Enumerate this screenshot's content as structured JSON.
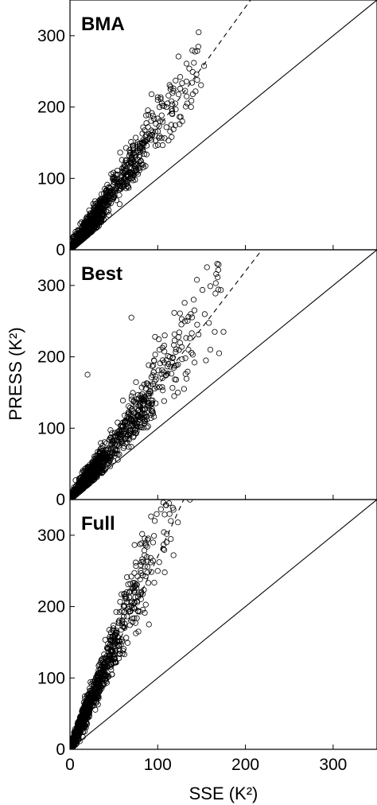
{
  "chart_data": [
    {
      "type": "scatter",
      "panel_label": "BMA",
      "xlim": [
        0,
        350
      ],
      "ylim": [
        0,
        350
      ],
      "xticks": [
        0,
        100,
        200,
        300
      ],
      "yticks": [
        0,
        100,
        200,
        300
      ],
      "identity_line": true,
      "dashed_fit_slope": 1.7,
      "clusters": [
        {
          "x_center": 20,
          "y_center": 30,
          "count": 420
        },
        {
          "x_center": 45,
          "y_center": 75,
          "count": 260
        },
        {
          "x_center": 70,
          "y_center": 120,
          "count": 160
        },
        {
          "x_center": 85,
          "y_center": 155,
          "count": 80
        }
      ],
      "outliers": [
        {
          "x": 120,
          "y": 205
        },
        {
          "x": 133,
          "y": 215
        },
        {
          "x": 140,
          "y": 218
        },
        {
          "x": 145,
          "y": 238
        },
        {
          "x": 128,
          "y": 180
        },
        {
          "x": 100,
          "y": 210
        },
        {
          "x": 93,
          "y": 218
        },
        {
          "x": 110,
          "y": 200
        },
        {
          "x": 125,
          "y": 176
        },
        {
          "x": 138,
          "y": 200
        }
      ]
    },
    {
      "type": "scatter",
      "panel_label": "Best",
      "xlim": [
        0,
        350
      ],
      "ylim": [
        0,
        350
      ],
      "xticks": [
        0,
        100,
        200,
        300
      ],
      "yticks": [
        0,
        100,
        200,
        300
      ],
      "identity_line": true,
      "dashed_fit_slope": 1.6,
      "clusters": [
        {
          "x_center": 20,
          "y_center": 30,
          "count": 460
        },
        {
          "x_center": 50,
          "y_center": 75,
          "count": 300
        },
        {
          "x_center": 75,
          "y_center": 120,
          "count": 160
        },
        {
          "x_center": 95,
          "y_center": 175,
          "count": 90
        }
      ],
      "outliers": [
        {
          "x": 20,
          "y": 175
        },
        {
          "x": 70,
          "y": 255
        },
        {
          "x": 145,
          "y": 245
        },
        {
          "x": 165,
          "y": 235
        },
        {
          "x": 175,
          "y": 235
        },
        {
          "x": 160,
          "y": 210
        },
        {
          "x": 155,
          "y": 195
        },
        {
          "x": 170,
          "y": 205
        },
        {
          "x": 135,
          "y": 210
        },
        {
          "x": 130,
          "y": 155
        },
        {
          "x": 123,
          "y": 150
        },
        {
          "x": 108,
          "y": 230
        },
        {
          "x": 97,
          "y": 228
        },
        {
          "x": 142,
          "y": 192
        }
      ]
    },
    {
      "type": "scatter",
      "panel_label": "Full",
      "xlim": [
        0,
        350
      ],
      "ylim": [
        0,
        350
      ],
      "xticks": [
        0,
        100,
        200,
        300
      ],
      "yticks": [
        0,
        100,
        200,
        300
      ],
      "identity_line": true,
      "dashed_fit_slope": 2.7,
      "clusters": [
        {
          "x_center": 12,
          "y_center": 35,
          "count": 360
        },
        {
          "x_center": 28,
          "y_center": 80,
          "count": 260
        },
        {
          "x_center": 48,
          "y_center": 135,
          "count": 170
        },
        {
          "x_center": 65,
          "y_center": 200,
          "count": 110
        },
        {
          "x_center": 80,
          "y_center": 250,
          "count": 60
        }
      ],
      "outliers": [
        {
          "x": 115,
          "y": 320
        },
        {
          "x": 123,
          "y": 318
        },
        {
          "x": 110,
          "y": 290
        },
        {
          "x": 118,
          "y": 272
        },
        {
          "x": 100,
          "y": 250
        },
        {
          "x": 108,
          "y": 248
        },
        {
          "x": 85,
          "y": 272
        },
        {
          "x": 90,
          "y": 175
        },
        {
          "x": 78,
          "y": 165
        },
        {
          "x": 92,
          "y": 262
        }
      ]
    }
  ],
  "axes": {
    "xlabel": "SSE (K²)",
    "ylabel": "PRESS (K²)"
  }
}
